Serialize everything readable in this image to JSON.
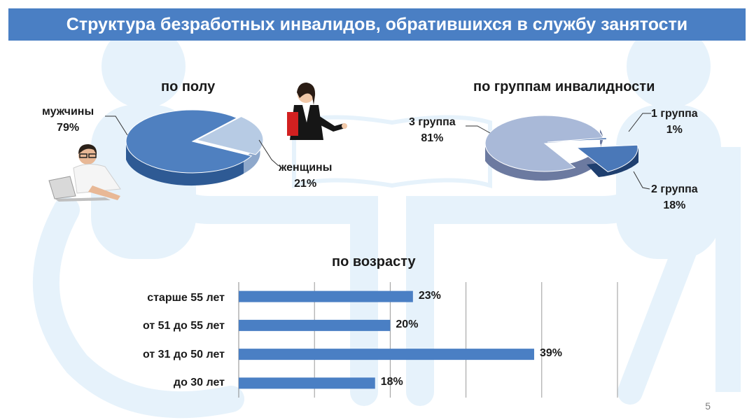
{
  "title": "Структура безработных инвалидов, обратившихся в службу занятости",
  "page_number": "5",
  "colors": {
    "title_bar": "#4a7fc4",
    "bar": "#4a7fc4",
    "background_watermark": "#e6f2fb",
    "pie_men": "#4f80c0",
    "pie_women": "#b7cbe4",
    "pie_group3": "#a9b9d8",
    "pie_group2": "#4a78b8",
    "pie_group1": "#3a66a8"
  },
  "illustrations": {
    "background": "wheelchair-watermark",
    "woman": "businesswoman-figure",
    "man": "man-with-laptop-figure"
  },
  "chart_data": [
    {
      "type": "pie",
      "title": "по полу",
      "slices": [
        {
          "label": "мужчины",
          "value": 79,
          "value_label": "79%"
        },
        {
          "label": "женщины",
          "value": 21,
          "value_label": "21%"
        }
      ]
    },
    {
      "type": "pie",
      "title": "по группам инвалидности",
      "slices": [
        {
          "label": "3 группа",
          "value": 81,
          "value_label": "81%"
        },
        {
          "label": "1 группа",
          "value": 1,
          "value_label": "1%"
        },
        {
          "label": "2 группа",
          "value": 18,
          "value_label": "18%"
        }
      ]
    },
    {
      "type": "bar",
      "orientation": "horizontal",
      "title": "по возрасту",
      "categories": [
        "старше 55 лет",
        "от 51 до 55 лет",
        "от 31 до 50 лет",
        "до 30 лет"
      ],
      "values": [
        23,
        20,
        39,
        18
      ],
      "value_labels": [
        "23%",
        "20%",
        "39%",
        "18%"
      ],
      "xlim": [
        0,
        50
      ],
      "grid": true
    }
  ]
}
